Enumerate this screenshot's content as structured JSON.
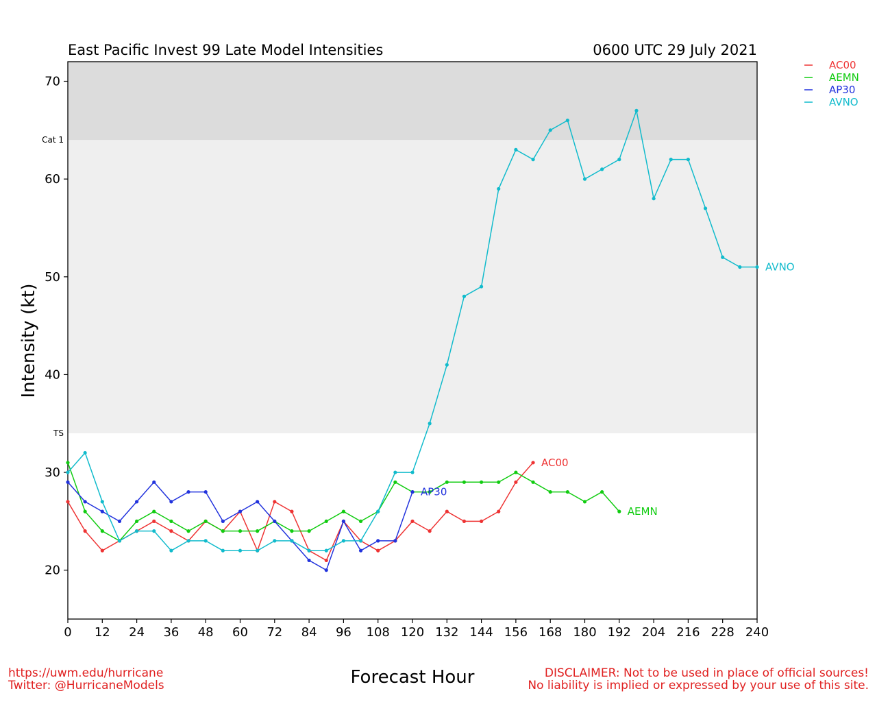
{
  "header": {
    "title": "East Pacific Invest 99 Late Model Intensities",
    "timestamp": "0600 UTC 29 July 2021"
  },
  "footer": {
    "url": "https://uwm.edu/hurricane",
    "twitter": "Twitter: @HurricaneModels",
    "disclaimer_line1": "DISCLAIMER: Not to be used in place of official sources!",
    "disclaimer_line2": "No liability is implied or expressed by your use of this site."
  },
  "chart_data": {
    "type": "line",
    "title": "East Pacific Invest 99 Late Model Intensities",
    "subtitle": "0600 UTC 29 July 2021",
    "xlabel": "Forecast Hour",
    "ylabel": "Intensity (kt)",
    "xlim": [
      0,
      240
    ],
    "ylim": [
      15,
      72
    ],
    "xticks": [
      0,
      12,
      24,
      36,
      48,
      60,
      72,
      84,
      96,
      108,
      120,
      132,
      144,
      156,
      168,
      180,
      192,
      204,
      216,
      228,
      240
    ],
    "yticks": [
      20,
      30,
      40,
      50,
      60,
      70
    ],
    "thresholds": [
      {
        "label": "TS",
        "value": 34,
        "shade": "#efefef"
      },
      {
        "label": "Cat 1",
        "value": 64,
        "shade": "#dcdcdc"
      }
    ],
    "legend_position": "top-right, outside plot",
    "grid": false,
    "series": [
      {
        "name": "AC00",
        "color": "#ee3333",
        "x": [
          0,
          6,
          12,
          18,
          24,
          30,
          36,
          42,
          48,
          54,
          60,
          66,
          72,
          78,
          84,
          90,
          96,
          102,
          108,
          114,
          120,
          126,
          132,
          138,
          144,
          150,
          156,
          162
        ],
        "values": [
          27,
          24,
          22,
          23,
          24,
          25,
          24,
          23,
          25,
          24,
          26,
          22,
          27,
          26,
          22,
          21,
          25,
          23,
          22,
          23,
          25,
          24,
          26,
          25,
          25,
          26,
          29,
          31
        ]
      },
      {
        "name": "AEMN",
        "color": "#11cc11",
        "x": [
          0,
          6,
          12,
          18,
          24,
          30,
          36,
          42,
          48,
          54,
          60,
          66,
          72,
          78,
          84,
          90,
          96,
          102,
          108,
          114,
          120,
          126,
          132,
          138,
          144,
          150,
          156,
          162,
          168,
          174,
          180,
          186,
          192
        ],
        "values": [
          31,
          26,
          24,
          23,
          25,
          26,
          25,
          24,
          25,
          24,
          24,
          24,
          25,
          24,
          24,
          25,
          26,
          25,
          26,
          29,
          28,
          28,
          29,
          29,
          29,
          29,
          30,
          29,
          28,
          28,
          27,
          28,
          26
        ]
      },
      {
        "name": "AP30",
        "color": "#2233dd",
        "x": [
          0,
          6,
          12,
          18,
          24,
          30,
          36,
          42,
          48,
          54,
          60,
          66,
          72,
          78,
          84,
          90,
          96,
          102,
          108,
          114,
          120
        ],
        "values": [
          29,
          27,
          26,
          25,
          27,
          29,
          27,
          28,
          28,
          25,
          26,
          27,
          25,
          23,
          21,
          20,
          25,
          22,
          23,
          23,
          28
        ]
      },
      {
        "name": "AVNO",
        "color": "#11bbcc",
        "x": [
          0,
          6,
          12,
          18,
          24,
          30,
          36,
          42,
          48,
          54,
          60,
          66,
          72,
          78,
          84,
          90,
          96,
          102,
          108,
          114,
          120,
          126,
          132,
          138,
          144,
          150,
          156,
          162,
          168,
          174,
          180,
          186,
          192,
          198,
          204,
          210,
          216,
          222,
          228,
          234,
          240
        ],
        "values": [
          30,
          32,
          27,
          23,
          24,
          24,
          22,
          23,
          23,
          22,
          22,
          22,
          23,
          23,
          22,
          22,
          23,
          23,
          26,
          30,
          30,
          35,
          41,
          48,
          49,
          59,
          63,
          62,
          65,
          66,
          60,
          61,
          62,
          67,
          58,
          62,
          62,
          57,
          52,
          51,
          51
        ]
      }
    ]
  }
}
